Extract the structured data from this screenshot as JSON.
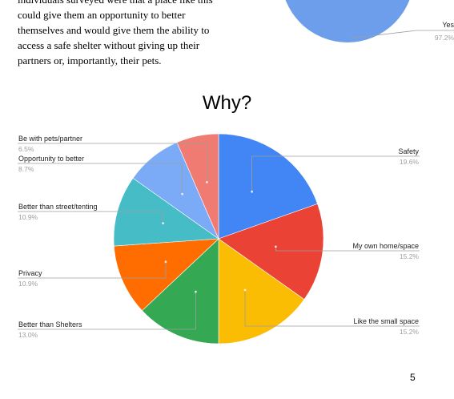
{
  "body_text": {
    "lines": [
      "individuals surveyed were that a place like this",
      "could give them an opportunity to better",
      "themselves and would give them the ability to",
      "access a safe shelter without giving up their",
      "partners or, importantly, their pets."
    ]
  },
  "top_chart": {
    "label": "Yes",
    "pct": "97.2%",
    "color": "#6d9eeb"
  },
  "chart_data": {
    "type": "pie",
    "title": "Why?",
    "slices": [
      {
        "label": "Safety",
        "value": 19.6,
        "pct": "19.6%",
        "color": "#4285f4"
      },
      {
        "label": "My own home/space",
        "value": 15.2,
        "pct": "15.2%",
        "color": "#ea4335"
      },
      {
        "label": "Like the small space",
        "value": 15.2,
        "pct": "15.2%",
        "color": "#fbbc04"
      },
      {
        "label": "Better than Shelters",
        "value": 13.0,
        "pct": "13.0%",
        "color": "#34a853"
      },
      {
        "label": "Privacy",
        "value": 10.9,
        "pct": "10.9%",
        "color": "#ff6d01"
      },
      {
        "label": "Better than street/tenting",
        "value": 10.9,
        "pct": "10.9%",
        "color": "#46bdc6"
      },
      {
        "label": "Opportunity to better",
        "value": 8.7,
        "pct": "8.7%",
        "color": "#7baaf7"
      },
      {
        "label": "Be with pets/partner",
        "value": 6.5,
        "pct": "6.5%",
        "color": "#f07b72"
      }
    ]
  },
  "page_number": "5"
}
